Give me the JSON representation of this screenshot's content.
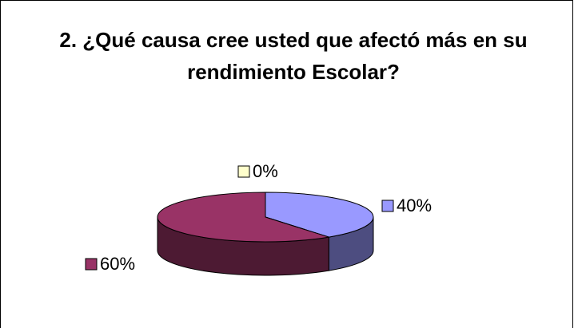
{
  "chart_data": {
    "type": "pie3d",
    "title": "2. ¿Qué causa cree usted que afectó más en su rendimiento Escolar?",
    "categories": [
      null,
      null,
      null
    ],
    "values": [
      40,
      0,
      60
    ],
    "value_labels": [
      "40%",
      "0%",
      "60%"
    ],
    "colors": [
      "#9999ff",
      "#ffffcc",
      "#993366"
    ],
    "side_colors": [
      "#4d4d80",
      "#808066",
      "#4d1a33"
    ]
  }
}
